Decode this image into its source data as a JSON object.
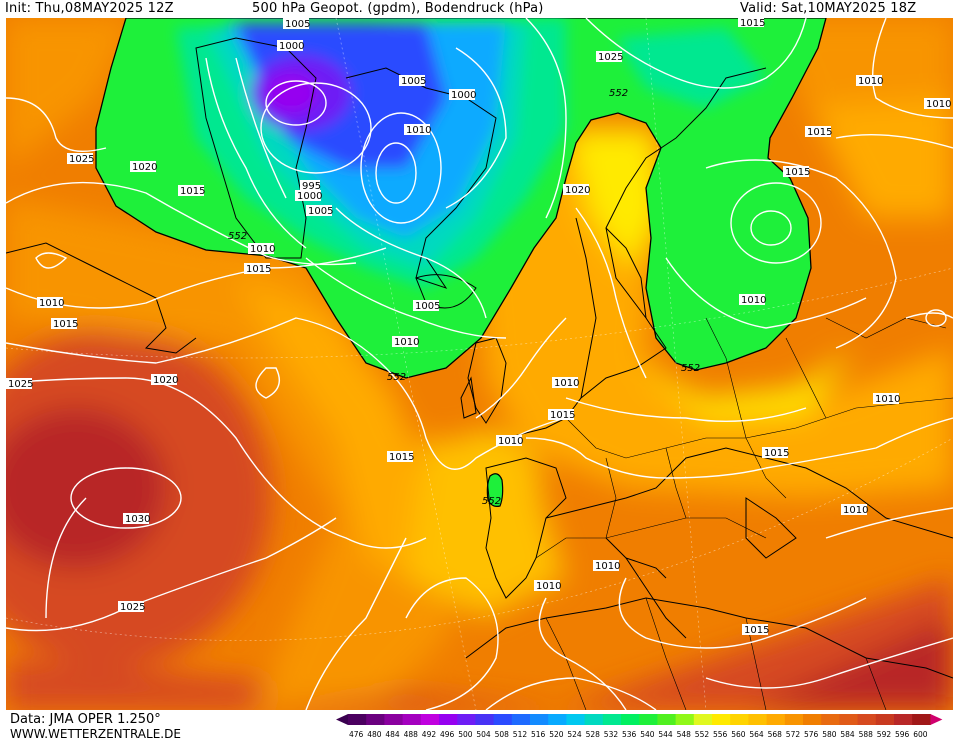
{
  "header": {
    "init": "Init: Thu,08MAY2025 12Z",
    "title": "500 hPa Geopot. (gpdm), Bodendruck (hPa)",
    "valid": "Valid: Sat,10MAY2025 18Z"
  },
  "footer": {
    "source": "Data: JMA OPER 1.250°",
    "site": "WWW.WETTERZENTRALE.DE"
  },
  "legend": {
    "values": [
      "476",
      "480",
      "484",
      "488",
      "492",
      "496",
      "500",
      "504",
      "508",
      "512",
      "516",
      "520",
      "524",
      "528",
      "532",
      "536",
      "540",
      "544",
      "548",
      "552",
      "556",
      "560",
      "564",
      "568",
      "572",
      "576",
      "580",
      "584",
      "588",
      "592",
      "596",
      "600"
    ],
    "colors": [
      "#4b0060",
      "#6a007f",
      "#8a009f",
      "#a400bf",
      "#c000df",
      "#9600f0",
      "#6e1df5",
      "#4832f5",
      "#2b4bff",
      "#1e6aff",
      "#138bff",
      "#08aaff",
      "#00c8f0",
      "#00d9c0",
      "#00e890",
      "#00f060",
      "#1ef03a",
      "#50f020",
      "#90f818",
      "#e0f820",
      "#ffea00",
      "#ffd400",
      "#ffc000",
      "#ffaa00",
      "#f89400",
      "#f07e00",
      "#e86a10",
      "#e05a18",
      "#d64a20",
      "#c83a20",
      "#b82828",
      "#a01818"
    ]
  },
  "map": {
    "pressure_labels": [
      "1005",
      "1000",
      "1005",
      "1000",
      "1010",
      "1025",
      "1020",
      "1015",
      "995",
      "1000",
      "1005",
      "1010",
      "1015",
      "1025",
      "1010",
      "1015",
      "1010",
      "1015",
      "1020",
      "1015",
      "1010",
      "1005",
      "1010",
      "1025",
      "1020",
      "1015",
      "1010",
      "1010",
      "1015",
      "1010",
      "1015",
      "1030",
      "1010",
      "1010",
      "1025",
      "1015",
      "1015",
      "1010",
      "1010"
    ],
    "geopotential_labels": [
      "552",
      "552",
      "552",
      "552",
      "552"
    ]
  }
}
